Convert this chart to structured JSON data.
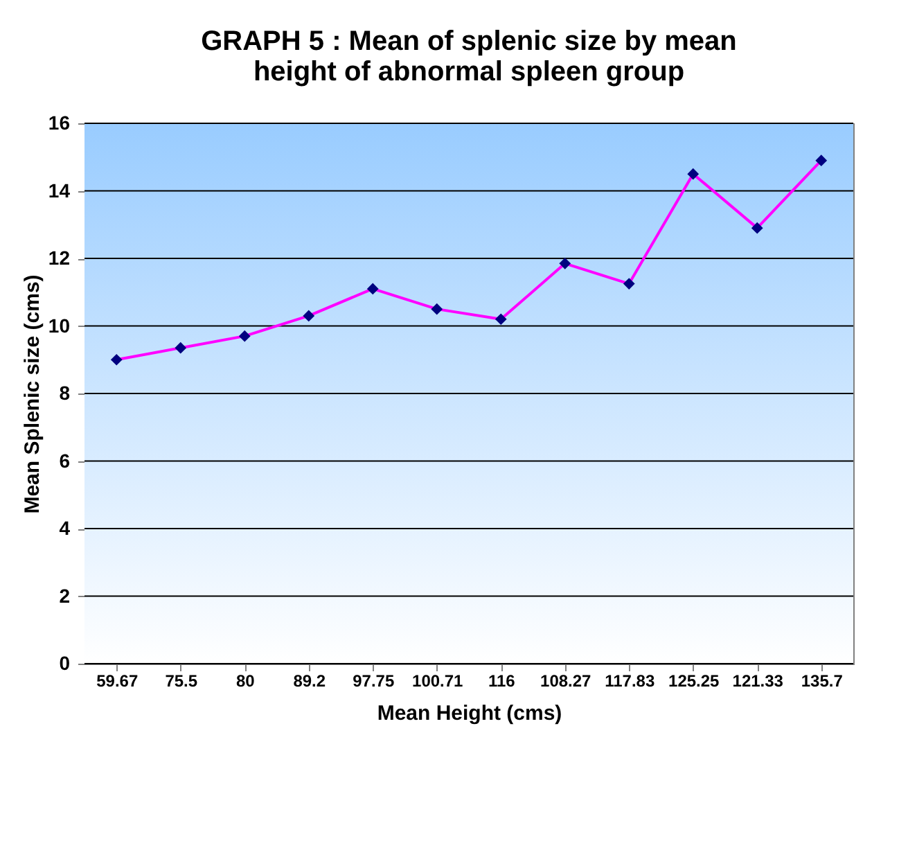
{
  "chart_data": {
    "type": "line",
    "title": [
      "GRAPH 5 : Mean of splenic size by mean",
      "height  of abnormal spleen group"
    ],
    "xlabel": "Mean Height (cms)",
    "ylabel": "Mean Splenic size (cms)",
    "categories": [
      "59.67",
      "75.5",
      "80",
      "89.2",
      "97.75",
      "100.71",
      "116",
      "108.27",
      "117.83",
      "125.25",
      "121.33",
      "135.7"
    ],
    "series": [
      {
        "color": "#ff00ff",
        "colors": [
          "#000080",
          "#000080",
          "#000080",
          "#000080",
          "#000080",
          "#000080",
          "#000080",
          "#000080",
          "#000080",
          "#000080",
          "#000080",
          "#000080"
        ],
        "values": [
          9.0,
          9.35,
          9.7,
          10.3,
          11.1,
          10.5,
          10.2,
          11.85,
          11.25,
          14.5,
          12.9,
          14.9
        ]
      }
    ],
    "ylim": [
      0,
      16
    ],
    "yticks": [
      0,
      2,
      4,
      6,
      8,
      10,
      12,
      14,
      16
    ],
    "grid": "y",
    "marker": "diamond",
    "line_style": "solid"
  }
}
